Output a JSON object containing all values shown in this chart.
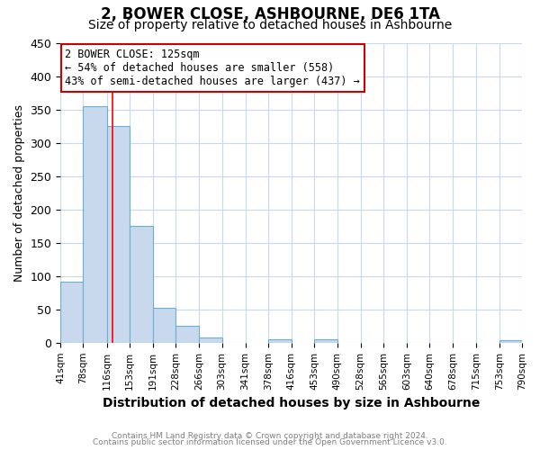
{
  "title": "2, BOWER CLOSE, ASHBOURNE, DE6 1TA",
  "subtitle": "Size of property relative to detached houses in Ashbourne",
  "xlabel": "Distribution of detached houses by size in Ashbourne",
  "ylabel": "Number of detached properties",
  "bin_edges": [
    41,
    78,
    116,
    153,
    191,
    228,
    266,
    303,
    341,
    378,
    416,
    453,
    490,
    528,
    565,
    603,
    640,
    678,
    715,
    753,
    790
  ],
  "bar_heights": [
    91,
    355,
    325,
    175,
    53,
    25,
    8,
    0,
    0,
    5,
    0,
    5,
    0,
    0,
    0,
    0,
    0,
    0,
    0,
    4
  ],
  "bar_color": "#c8d9ed",
  "bar_edge_color": "#6baed6",
  "grid_color": "#c8d9ed",
  "red_line_x": 125,
  "ylim": [
    0,
    450
  ],
  "xlim": [
    41,
    790
  ],
  "annotation_title": "2 BOWER CLOSE: 125sqm",
  "annotation_line1": "← 54% of detached houses are smaller (558)",
  "annotation_line2": "43% of semi-detached houses are larger (437) →",
  "annotation_box_color": "#ffffff",
  "annotation_box_edge": "#cc0000",
  "footer_line1": "Contains HM Land Registry data © Crown copyright and database right 2024.",
  "footer_line2": "Contains public sector information licensed under the Open Government Licence v3.0.",
  "tick_labels": [
    "41sqm",
    "78sqm",
    "116sqm",
    "153sqm",
    "191sqm",
    "228sqm",
    "266sqm",
    "303sqm",
    "341sqm",
    "378sqm",
    "416sqm",
    "453sqm",
    "490sqm",
    "528sqm",
    "565sqm",
    "603sqm",
    "640sqm",
    "678sqm",
    "715sqm",
    "753sqm",
    "790sqm"
  ],
  "yticks": [
    0,
    50,
    100,
    150,
    200,
    250,
    300,
    350,
    400,
    450
  ],
  "background_color": "#ffffff",
  "title_fontsize": 12,
  "subtitle_fontsize": 10,
  "ylabel_fontsize": 9,
  "xlabel_fontsize": 10,
  "tick_fontsize": 7.5,
  "footer_fontsize": 6.5,
  "ann_fontsize": 8.5
}
